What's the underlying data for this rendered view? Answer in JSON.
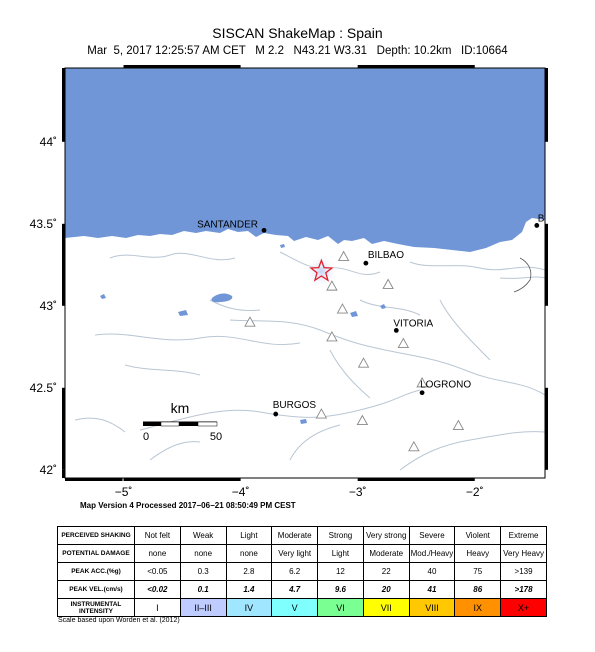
{
  "header": {
    "title": "SISCAN ShakeMap : Spain",
    "subtitle": "Mar  5, 2017 12:25:57 AM CET   M 2.2   N43.21 W3.31   Depth: 10.2km   ID:10664"
  },
  "map": {
    "lon_range": [
      -5.5,
      -1.4
    ],
    "lat_range": [
      41.95,
      44.45
    ],
    "lat_ticks": [
      {
        "value": 42.0,
        "label": "42˚"
      },
      {
        "value": 42.5,
        "label": "42.5˚"
      },
      {
        "value": 43.0,
        "label": "43˚"
      },
      {
        "value": 43.5,
        "label": "43.5˚"
      },
      {
        "value": 44.0,
        "label": "44˚"
      }
    ],
    "lon_ticks": [
      {
        "value": -5,
        "label": "−5˚"
      },
      {
        "value": -4,
        "label": "−4˚"
      },
      {
        "value": -3,
        "label": "−3˚"
      },
      {
        "value": -2,
        "label": "−2˚"
      }
    ],
    "colors": {
      "sea": "#7096d8",
      "land": "#ffffff",
      "rivers": "#b9c6d3",
      "epicenter": "#e0202a",
      "glow": "#ccd6f4"
    },
    "epicenter": {
      "lon": -3.31,
      "lat": 43.21
    },
    "cities": [
      {
        "name": "SANTANDER",
        "lon": -3.8,
        "lat": 43.46
      },
      {
        "name": "BILBAO",
        "lon": -2.93,
        "lat": 43.26
      },
      {
        "name": "VITORIA",
        "lon": -2.67,
        "lat": 42.85
      },
      {
        "name": "LOGRONO",
        "lon": -2.45,
        "lat": 42.47
      },
      {
        "name": "BURGOS",
        "lon": -3.7,
        "lat": 42.34
      },
      {
        "name": "BAY",
        "lon": -1.47,
        "lat": 43.49
      }
    ],
    "stations": [
      {
        "lon": -3.12,
        "lat": 43.3
      },
      {
        "lon": -3.22,
        "lat": 43.12
      },
      {
        "lon": -2.74,
        "lat": 43.13
      },
      {
        "lon": -3.13,
        "lat": 42.98
      },
      {
        "lon": -3.92,
        "lat": 42.9
      },
      {
        "lon": -3.22,
        "lat": 42.81
      },
      {
        "lon": -2.61,
        "lat": 42.77
      },
      {
        "lon": -2.95,
        "lat": 42.65
      },
      {
        "lon": -2.45,
        "lat": 42.53
      },
      {
        "lon": -2.96,
        "lat": 42.3
      },
      {
        "lon": -3.31,
        "lat": 42.34
      },
      {
        "lon": -2.14,
        "lat": 42.27
      },
      {
        "lon": -2.52,
        "lat": 42.14
      }
    ],
    "scale_bar": {
      "label": "km",
      "start": "0",
      "end": "50"
    }
  },
  "footer": {
    "processed": "Map Version 4 Processed 2017−06−21 08:50:49 PM CEST",
    "scale_note": "Scale based upon Worden et al. (2012)"
  },
  "legend": {
    "rows": [
      {
        "key": "shaking",
        "head": "PERCEIVED SHAKING",
        "values": [
          "Not felt",
          "Weak",
          "Light",
          "Moderate",
          "Strong",
          "Very strong",
          "Severe",
          "Violent",
          "Extreme"
        ]
      },
      {
        "key": "damage",
        "head": "POTENTIAL DAMAGE",
        "values": [
          "none",
          "none",
          "none",
          "Very light",
          "Light",
          "Moderate",
          "Mod./Heavy",
          "Heavy",
          "Very Heavy"
        ]
      },
      {
        "key": "acc",
        "head": "PEAK ACC.(%g)",
        "values": [
          "<0.05",
          "0.3",
          "2.8",
          "6.2",
          "12",
          "22",
          "40",
          "75",
          ">139"
        ]
      },
      {
        "key": "vel",
        "head": "PEAK VEL.(cm/s)",
        "values": [
          "<0.02",
          "0.1",
          "1.4",
          "4.7",
          "9.6",
          "20",
          "41",
          "86",
          ">178"
        ]
      },
      {
        "key": "intensity",
        "head": "INSTRUMENTAL INTENSITY",
        "values": [
          "I",
          "II–III",
          "IV",
          "V",
          "VI",
          "VII",
          "VIII",
          "IX",
          "X+"
        ]
      }
    ],
    "intensity_colors": [
      "#ffffff",
      "#bfccff",
      "#a0e6ff",
      "#80ffff",
      "#7aff93",
      "#ffff00",
      "#ffc800",
      "#ff9100",
      "#ff0000"
    ]
  }
}
